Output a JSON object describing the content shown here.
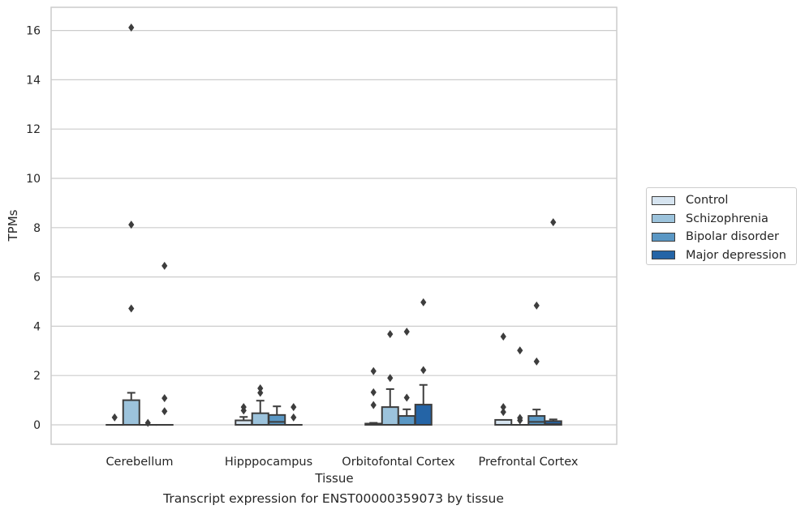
{
  "chart_data": {
    "type": "box",
    "title": "",
    "caption": "Transcript expression for ENST00000359073 by tissue",
    "xlabel": "Tissue",
    "ylabel": "TPMs",
    "ylim": [
      -0.8,
      16.9
    ],
    "yticks": [
      0,
      2,
      4,
      6,
      8,
      10,
      12,
      14,
      16
    ],
    "grid": "horizontal",
    "legend_position": "right",
    "categories": [
      "Cerebellum",
      "Hipppocampus",
      "Orbitofontal Cortex",
      "Prefrontal Cortex"
    ],
    "series": [
      {
        "name": "Control",
        "color": "#d6e4f0",
        "boxes": [
          {
            "q1": 0,
            "median": 0,
            "q3": 0,
            "whisker_low": 0,
            "whisker_high": 0,
            "outliers": [
              0.3
            ]
          },
          {
            "q1": 0,
            "median": 0,
            "q3": 0.18,
            "whisker_low": 0,
            "whisker_high": 0.32,
            "outliers": [
              0.58,
              0.72
            ]
          },
          {
            "q1": 0,
            "median": 0,
            "q3": 0.05,
            "whisker_low": 0,
            "whisker_high": 0.08,
            "outliers": [
              0.8,
              1.32,
              2.18
            ]
          },
          {
            "q1": 0,
            "median": 0,
            "q3": 0.2,
            "whisker_low": 0,
            "whisker_high": 0.2,
            "outliers": [
              0.52,
              0.72,
              3.58
            ]
          }
        ]
      },
      {
        "name": "Schizophrenia",
        "color": "#9cc3dc",
        "boxes": [
          {
            "q1": 0,
            "median": 0,
            "q3": 1.0,
            "whisker_low": 0,
            "whisker_high": 1.3,
            "outliers": [
              4.72,
              8.12,
              16.12
            ]
          },
          {
            "q1": 0,
            "median": 0,
            "q3": 0.47,
            "whisker_low": 0,
            "whisker_high": 0.98,
            "outliers": [
              1.3,
              1.48
            ]
          },
          {
            "q1": 0,
            "median": 0,
            "q3": 0.72,
            "whisker_low": 0,
            "whisker_high": 1.45,
            "outliers": [
              1.9,
              3.68
            ]
          },
          {
            "q1": 0,
            "median": 0,
            "q3": 0,
            "whisker_low": 0,
            "whisker_high": 0,
            "outliers": [
              0.18,
              0.28,
              3.02
            ]
          }
        ]
      },
      {
        "name": "Bipolar disorder",
        "color": "#5a97c4",
        "boxes": [
          {
            "q1": 0,
            "median": 0,
            "q3": 0,
            "whisker_low": 0,
            "whisker_high": 0,
            "outliers": [
              0.08
            ]
          },
          {
            "q1": 0,
            "median": 0.12,
            "q3": 0.4,
            "whisker_low": 0,
            "whisker_high": 0.75,
            "outliers": []
          },
          {
            "q1": 0,
            "median": 0,
            "q3": 0.36,
            "whisker_low": 0,
            "whisker_high": 0.63,
            "outliers": [
              1.1,
              3.78
            ]
          },
          {
            "q1": 0,
            "median": 0.12,
            "q3": 0.36,
            "whisker_low": 0,
            "whisker_high": 0.62,
            "outliers": [
              2.57,
              4.84
            ]
          }
        ]
      },
      {
        "name": "Major depression",
        "color": "#2464a6",
        "boxes": [
          {
            "q1": 0,
            "median": 0,
            "q3": 0,
            "whisker_low": 0,
            "whisker_high": 0,
            "outliers": [
              0.55,
              1.08,
              6.45
            ]
          },
          {
            "q1": 0,
            "median": 0,
            "q3": 0,
            "whisker_low": 0,
            "whisker_high": 0,
            "outliers": [
              0.3,
              0.72
            ]
          },
          {
            "q1": 0,
            "median": 0,
            "q3": 0.82,
            "whisker_low": 0,
            "whisker_high": 1.62,
            "outliers": [
              2.22,
              4.97
            ]
          },
          {
            "q1": 0,
            "median": 0.03,
            "q3": 0.15,
            "whisker_low": 0,
            "whisker_high": 0.22,
            "outliers": [
              8.22
            ]
          }
        ]
      }
    ]
  }
}
